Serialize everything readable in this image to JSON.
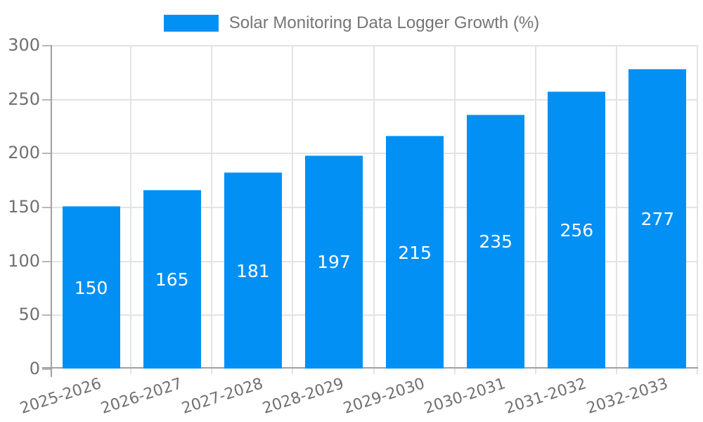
{
  "chart_data": {
    "type": "bar",
    "title": "Solar Monitoring Data Logger Growth (%)",
    "legend_entries": [
      "Solar Monitoring Data Logger Growth (%)"
    ],
    "legend_position": "top-center",
    "categories": [
      "2025-2026",
      "2026-2027",
      "2027-2028",
      "2028-2029",
      "2029-2030",
      "2030-2031",
      "2031-2032",
      "2032-2033"
    ],
    "values": [
      150,
      165,
      181,
      197,
      215,
      235,
      256,
      277
    ],
    "value_labels_shown": true,
    "xlabel": "",
    "ylabel": "",
    "ylim": [
      0,
      300
    ],
    "yticks": [
      0,
      50,
      100,
      150,
      200,
      250,
      300
    ],
    "grid": true,
    "x_tick_rotation_deg": -18,
    "colors": {
      "bar": "#0290f5",
      "bar_value_label": "#ffffff",
      "axis_tick_label": "#707070",
      "legend_label": "#757575",
      "gridline": "#e3e3e3",
      "axis_line": "#a0a0a0",
      "tick_mark": "#b8b8b8",
      "background": "#ffffff"
    }
  }
}
